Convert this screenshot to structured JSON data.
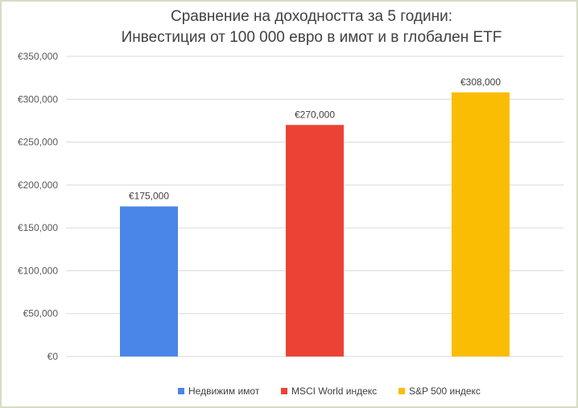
{
  "chart_data": {
    "type": "bar",
    "title_lines": [
      "Сравнение на доходността за 5 години:",
      "Инвестиция от 100 000 евро в имот и в глобален ETF"
    ],
    "categories": [
      "Недвижим имот",
      "MSCI World индекс",
      "S&P 500 индекс"
    ],
    "series": [
      {
        "name": "Недвижим имот",
        "values": [
          175000,
          null,
          null
        ],
        "color": "#4a86e8"
      },
      {
        "name": "MSCI World индекс",
        "values": [
          null,
          270000,
          null
        ],
        "color": "#ea4335"
      },
      {
        "name": "S&P 500 индекс",
        "values": [
          null,
          null,
          308000
        ],
        "color": "#fbbc04"
      }
    ],
    "data_labels": [
      "€175,000",
      "€270,000",
      "€308,000"
    ],
    "ylim": [
      0,
      350000
    ],
    "y_ticks": [
      0,
      50000,
      100000,
      150000,
      200000,
      250000,
      300000,
      350000
    ],
    "y_tick_labels": [
      "€0",
      "€50,000",
      "€100,000",
      "€150,000",
      "€200,000",
      "€250,000",
      "€300,000",
      "€350,000"
    ],
    "xlabel": "",
    "ylabel": "",
    "grid": true,
    "legend_position": "bottom"
  }
}
